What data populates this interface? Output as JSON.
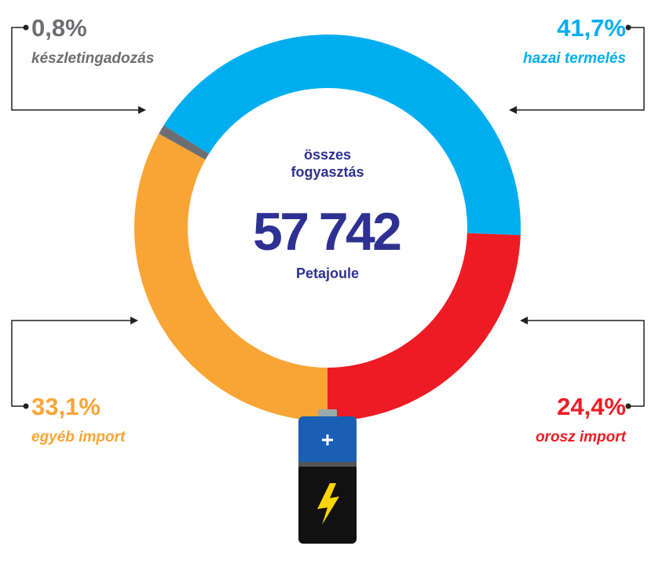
{
  "chart_data": {
    "type": "donut",
    "categories": [
      "egyéb import",
      "készletingadozás",
      "hazai termelés",
      "orosz import"
    ],
    "values": [
      33.1,
      0.8,
      41.7,
      24.4
    ],
    "value_labels": [
      "33,1%",
      "0,8%",
      "41,7%",
      "24,4%"
    ],
    "colors": [
      "#f8a535",
      "#6d6e71",
      "#00aeef",
      "#ed1c24"
    ],
    "center_title": "összes fogyasztás",
    "total": {
      "value": 57742,
      "label": "57 742"
    },
    "unit": "Petajoule"
  }
}
